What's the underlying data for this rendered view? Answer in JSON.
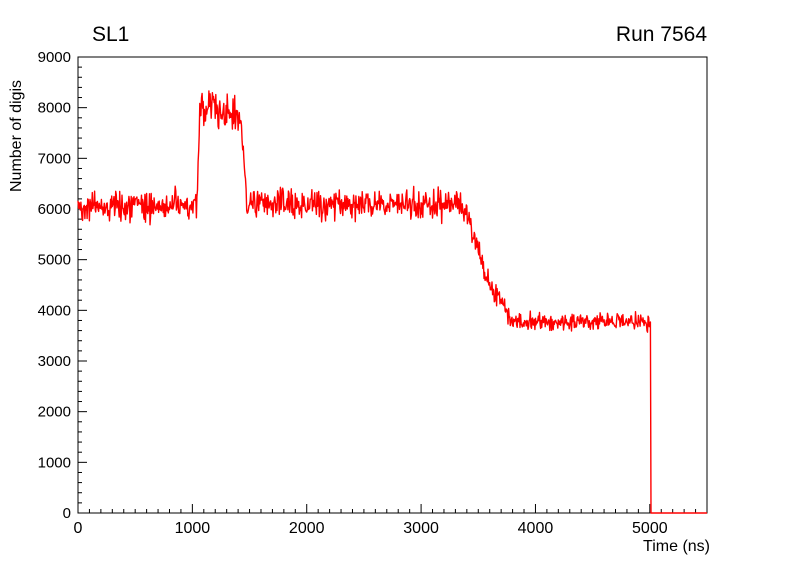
{
  "page": {
    "background": "#ffffff"
  },
  "chart_data": {
    "type": "line",
    "title_left": "SL1",
    "title_right": "Run 7564",
    "xlabel": "Time (ns)",
    "ylabel": "Number of digis",
    "xlim": [
      0,
      5500
    ],
    "ylim": [
      0,
      9000
    ],
    "x_major_ticks": [
      0,
      1000,
      2000,
      3000,
      4000,
      5000
    ],
    "x_minor_step": 100,
    "y_major_ticks": [
      0,
      1000,
      2000,
      3000,
      4000,
      5000,
      6000,
      7000,
      8000,
      9000
    ],
    "y_minor_step": 200,
    "grid": false,
    "legend": false,
    "line_color": "#ff0000",
    "line_width": 1.4,
    "frame_color": "#000000",
    "sample_step_ns": 5,
    "noise_seed": 42,
    "series_description": "Number of digis vs time: noisy plateau ~6050 from 0-1040 ns, sharp bump to ~7900-8100 (spikes to ~8600) between ~1050-1420 ns, back to ~6100 plateau until ~3380 ns, gradual fall to ~3800 by ~3800 ns, flat ~3770 until ~5005 ns, then sharp drop to 0 and flat 0 to 5500 ns",
    "series_segments": [
      {
        "x0": 0,
        "x1": 1040,
        "y0": 6050,
        "y1": 6050,
        "noise": 420
      },
      {
        "x0": 1040,
        "x1": 1065,
        "y0": 6050,
        "y1": 7900,
        "noise": 300
      },
      {
        "x0": 1065,
        "x1": 1200,
        "y0": 7950,
        "y1": 8100,
        "noise": 560
      },
      {
        "x0": 1200,
        "x1": 1420,
        "y0": 7950,
        "y1": 7800,
        "noise": 520
      },
      {
        "x0": 1420,
        "x1": 1475,
        "y0": 7800,
        "y1": 6200,
        "noise": 300
      },
      {
        "x0": 1475,
        "x1": 3380,
        "y0": 6100,
        "y1": 6100,
        "noise": 420
      },
      {
        "x0": 3380,
        "x1": 3560,
        "y0": 6100,
        "y1": 4650,
        "noise": 380
      },
      {
        "x0": 3560,
        "x1": 3800,
        "y0": 4650,
        "y1": 3830,
        "noise": 300
      },
      {
        "x0": 3800,
        "x1": 5005,
        "y0": 3770,
        "y1": 3770,
        "noise": 260
      },
      {
        "x0": 5005,
        "x1": 5010,
        "y0": 3770,
        "y1": 0,
        "noise": 0
      },
      {
        "x0": 5010,
        "x1": 5500,
        "y0": 0,
        "y1": 0,
        "noise": 0
      }
    ]
  }
}
